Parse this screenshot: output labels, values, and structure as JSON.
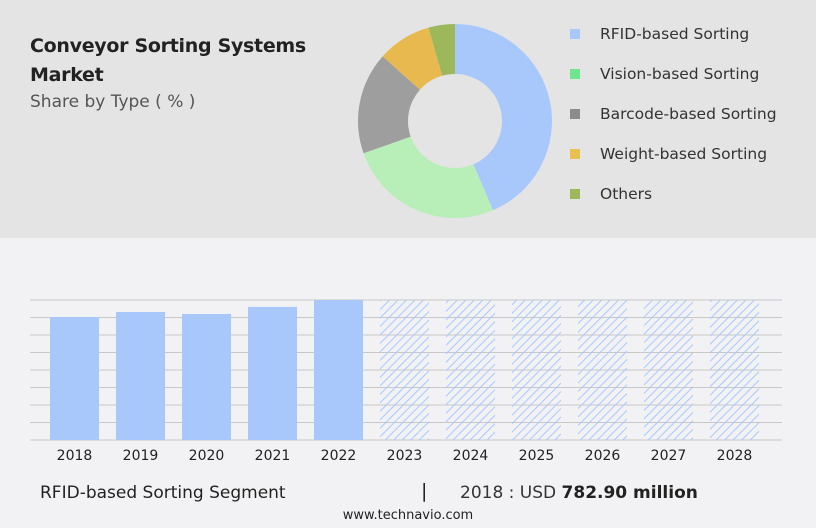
{
  "header": {
    "title": "Conveyor Sorting Systems Market",
    "subtitle": "Share by Type ( % )"
  },
  "chart_data": [
    {
      "type": "pie",
      "donut": true,
      "categories": [
        "RFID-based Sorting",
        "Vision-based Sorting",
        "Barcode-based Sorting",
        "Weight-based Sorting",
        "Others"
      ],
      "values": [
        43.6,
        26,
        17,
        9,
        4.4
      ],
      "colors": [
        "#a8c8fc",
        "#b8eeb8",
        "#9e9e9e",
        "#e8b94e",
        "#9cb85a"
      ],
      "legend_colors": [
        "#a8c8fc",
        "#6ee68e",
        "#8c8c8c",
        "#e8c04e",
        "#9cb85a"
      ],
      "legend": "right"
    },
    {
      "type": "bar",
      "categories": [
        "2018",
        "2019",
        "2020",
        "2021",
        "2022",
        "2023",
        "2024",
        "2025",
        "2026",
        "2027",
        "2028"
      ],
      "values": [
        782.9,
        815,
        802,
        847,
        891,
        null,
        null,
        null,
        null,
        null,
        null
      ],
      "forecast_from": "2023",
      "unit": "USD million",
      "color": "#a8c8fc",
      "grid": true
    }
  ],
  "footer": {
    "segment": "RFID-based Sorting Segment",
    "separator": "|",
    "year_label": "2018 : USD",
    "value": "782.90 million",
    "url": "www.technavio.com"
  }
}
